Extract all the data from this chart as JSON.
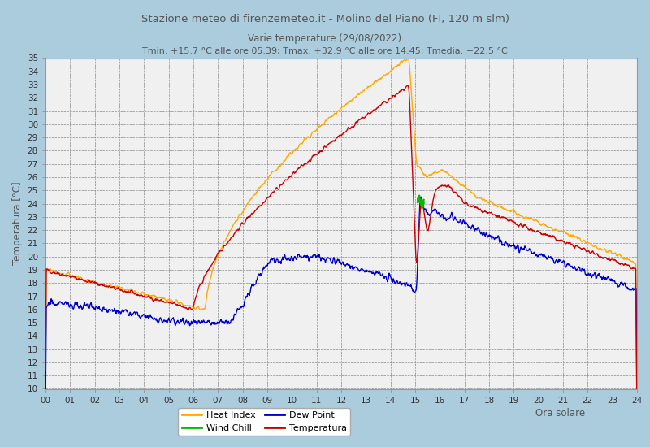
{
  "title1": "Stazione meteo di firenzemeteo.it - Molino del Piano (FI, 120 m slm)",
  "title2": "Varie temperature (29/08/2022)",
  "title3": "Tmin: +15.7 °C alle ore 05:39; Tmax: +32.9 °C alle ore 14:45; Tmedia: +22.5 °C",
  "xlabel": "Ora solare",
  "ylabel": "Temperatura [°C]",
  "xlim": [
    0,
    24
  ],
  "ylim": [
    10,
    35
  ],
  "yticks": [
    10,
    11,
    12,
    13,
    14,
    15,
    16,
    17,
    18,
    19,
    20,
    21,
    22,
    23,
    24,
    25,
    26,
    27,
    28,
    29,
    30,
    31,
    32,
    33,
    34,
    35
  ],
  "xticks": [
    0,
    1,
    2,
    3,
    4,
    5,
    6,
    7,
    8,
    9,
    10,
    11,
    12,
    13,
    14,
    15,
    16,
    17,
    18,
    19,
    20,
    21,
    22,
    23,
    24
  ],
  "xtick_labels": [
    "00",
    "01",
    "02",
    "03",
    "04",
    "05",
    "06",
    "07",
    "08",
    "09",
    "10",
    "11",
    "12",
    "13",
    "14",
    "15",
    "16",
    "17",
    "18",
    "19",
    "20",
    "21",
    "22",
    "23",
    "24"
  ],
  "color_temp": "#cc0000",
  "color_heat": "#ffaa00",
  "color_wind": "#00bb00",
  "color_dew": "#0000cc",
  "bg_plot": "#f0f0f0",
  "bg_fig": "#aaccdd",
  "grid_color": "#888888",
  "title_color": "#555555"
}
